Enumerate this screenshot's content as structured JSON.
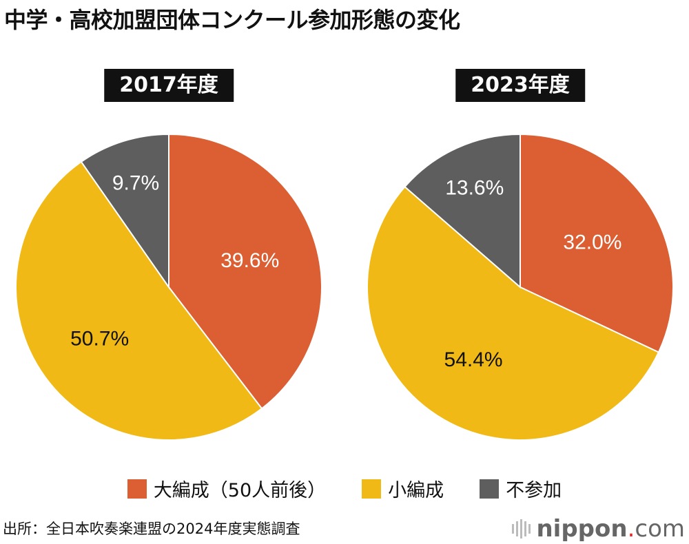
{
  "title": "中学・高校加盟団体コンクール参加形態の変化",
  "chart_data": [
    {
      "type": "pie",
      "title": "2017年度",
      "categories": [
        "大編成（50人前後）",
        "小編成",
        "不参加"
      ],
      "values": [
        39.6,
        50.7,
        9.7
      ],
      "labels": [
        "39.6%",
        "50.7%",
        "9.7%"
      ]
    },
    {
      "type": "pie",
      "title": "2023年度",
      "categories": [
        "大編成（50人前後）",
        "小編成",
        "不参加"
      ],
      "values": [
        32.0,
        54.4,
        13.6
      ],
      "labels": [
        "32.0%",
        "54.4%",
        "13.6%"
      ]
    }
  ],
  "colors": [
    "#DB5F33",
    "#F0B915",
    "#5E5E5E"
  ],
  "label_colors": [
    "#ffffff",
    "#111111",
    "#ffffff"
  ],
  "legend": [
    "大編成（50人前後）",
    "小編成",
    "不参加"
  ],
  "legend_placement": "bottom",
  "source": "出所：全日本吹奏楽連盟の2024年度実態調査",
  "logo": {
    "name": "nippon",
    "dot": ".",
    "tld": "com"
  }
}
